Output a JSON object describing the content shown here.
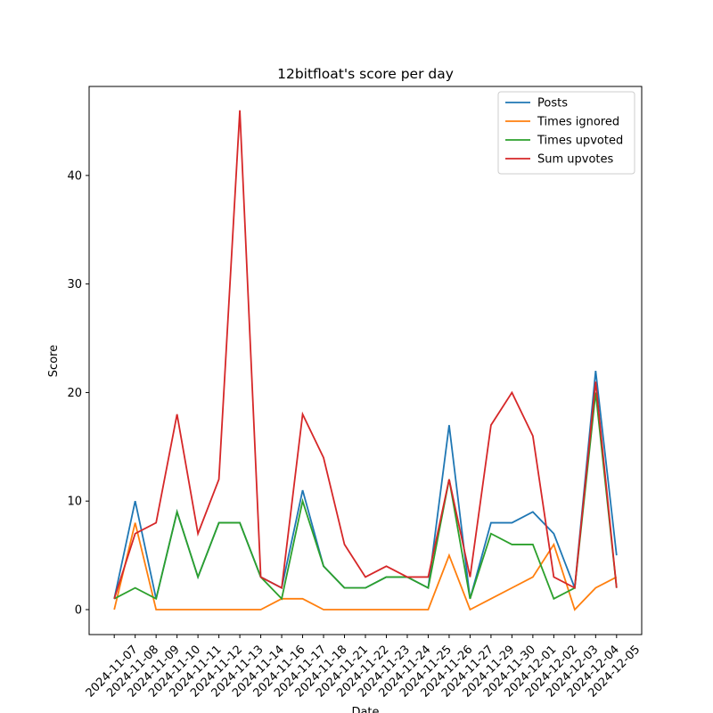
{
  "chart_data": {
    "type": "line",
    "title": "12bitfloat's score per day",
    "xlabel": "Date",
    "ylabel": "Score",
    "categories": [
      "2024-11-07",
      "2024-11-08",
      "2024-11-09",
      "2024-11-10",
      "2024-11-11",
      "2024-11-12",
      "2024-11-13",
      "2024-11-14",
      "2024-11-16",
      "2024-11-17",
      "2024-11-18",
      "2024-11-21",
      "2024-11-22",
      "2024-11-23",
      "2024-11-24",
      "2024-11-25",
      "2024-11-26",
      "2024-11-27",
      "2024-11-29",
      "2024-11-30",
      "2024-12-01",
      "2024-12-02",
      "2024-12-03",
      "2024-12-04",
      "2024-12-05"
    ],
    "series": [
      {
        "name": "Posts",
        "color": "#1f77b4",
        "values": [
          1,
          10,
          1,
          9,
          3,
          8,
          8,
          3,
          2,
          11,
          4,
          2,
          2,
          3,
          3,
          2,
          17,
          1,
          8,
          8,
          9,
          7,
          2,
          22,
          5
        ]
      },
      {
        "name": "Times ignored",
        "color": "#ff7f0e",
        "values": [
          0,
          8,
          0,
          0,
          0,
          0,
          0,
          0,
          1,
          1,
          0,
          0,
          0,
          0,
          0,
          0,
          5,
          0,
          1,
          2,
          3,
          6,
          0,
          2,
          3
        ]
      },
      {
        "name": "Times upvoted",
        "color": "#2ca02c",
        "values": [
          1,
          2,
          1,
          9,
          3,
          8,
          8,
          3,
          1,
          10,
          4,
          2,
          2,
          3,
          3,
          2,
          12,
          1,
          7,
          6,
          6,
          1,
          2,
          20,
          2
        ]
      },
      {
        "name": "Sum upvotes",
        "color": "#d62728",
        "values": [
          1,
          7,
          8,
          18,
          7,
          12,
          46,
          3,
          2,
          18,
          14,
          6,
          3,
          4,
          3,
          3,
          12,
          3,
          17,
          20,
          16,
          3,
          2,
          21,
          2
        ]
      }
    ],
    "ylim": [
      -2.3,
      48.2
    ],
    "yticks": [
      0,
      10,
      20,
      30,
      40
    ],
    "legend": "upper right"
  }
}
